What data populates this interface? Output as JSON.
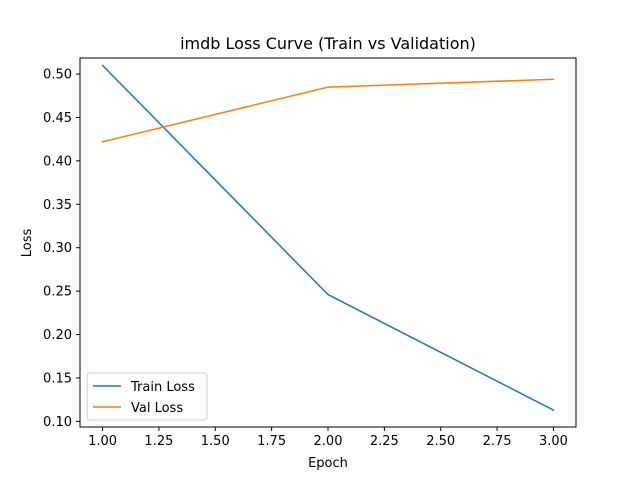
{
  "chart_data": {
    "type": "line",
    "title": "imdb Loss Curve (Train vs Validation)",
    "xlabel": "Epoch",
    "ylabel": "Loss",
    "x": [
      1.0,
      2.0,
      3.0
    ],
    "xlim": [
      0.9,
      3.1
    ],
    "ylim": [
      0.0935,
      0.5185
    ],
    "xticks": [
      1.0,
      1.25,
      1.5,
      1.75,
      2.0,
      2.25,
      2.5,
      2.75,
      3.0
    ],
    "xtick_labels": [
      "1.00",
      "1.25",
      "1.50",
      "1.75",
      "2.00",
      "2.25",
      "2.50",
      "2.75",
      "3.00"
    ],
    "yticks": [
      0.1,
      0.15,
      0.2,
      0.25,
      0.3,
      0.35,
      0.4,
      0.45,
      0.5
    ],
    "ytick_labels": [
      "0.10",
      "0.15",
      "0.20",
      "0.25",
      "0.30",
      "0.35",
      "0.40",
      "0.45",
      "0.50"
    ],
    "grid": false,
    "legend_position": "lower-left",
    "series": [
      {
        "name": "Train Loss",
        "color": "#1f77b4",
        "values": [
          0.51,
          0.246,
          0.113
        ]
      },
      {
        "name": "Val Loss",
        "color": "#ff7f0e",
        "values": [
          0.422,
          0.485,
          0.494
        ]
      }
    ]
  }
}
